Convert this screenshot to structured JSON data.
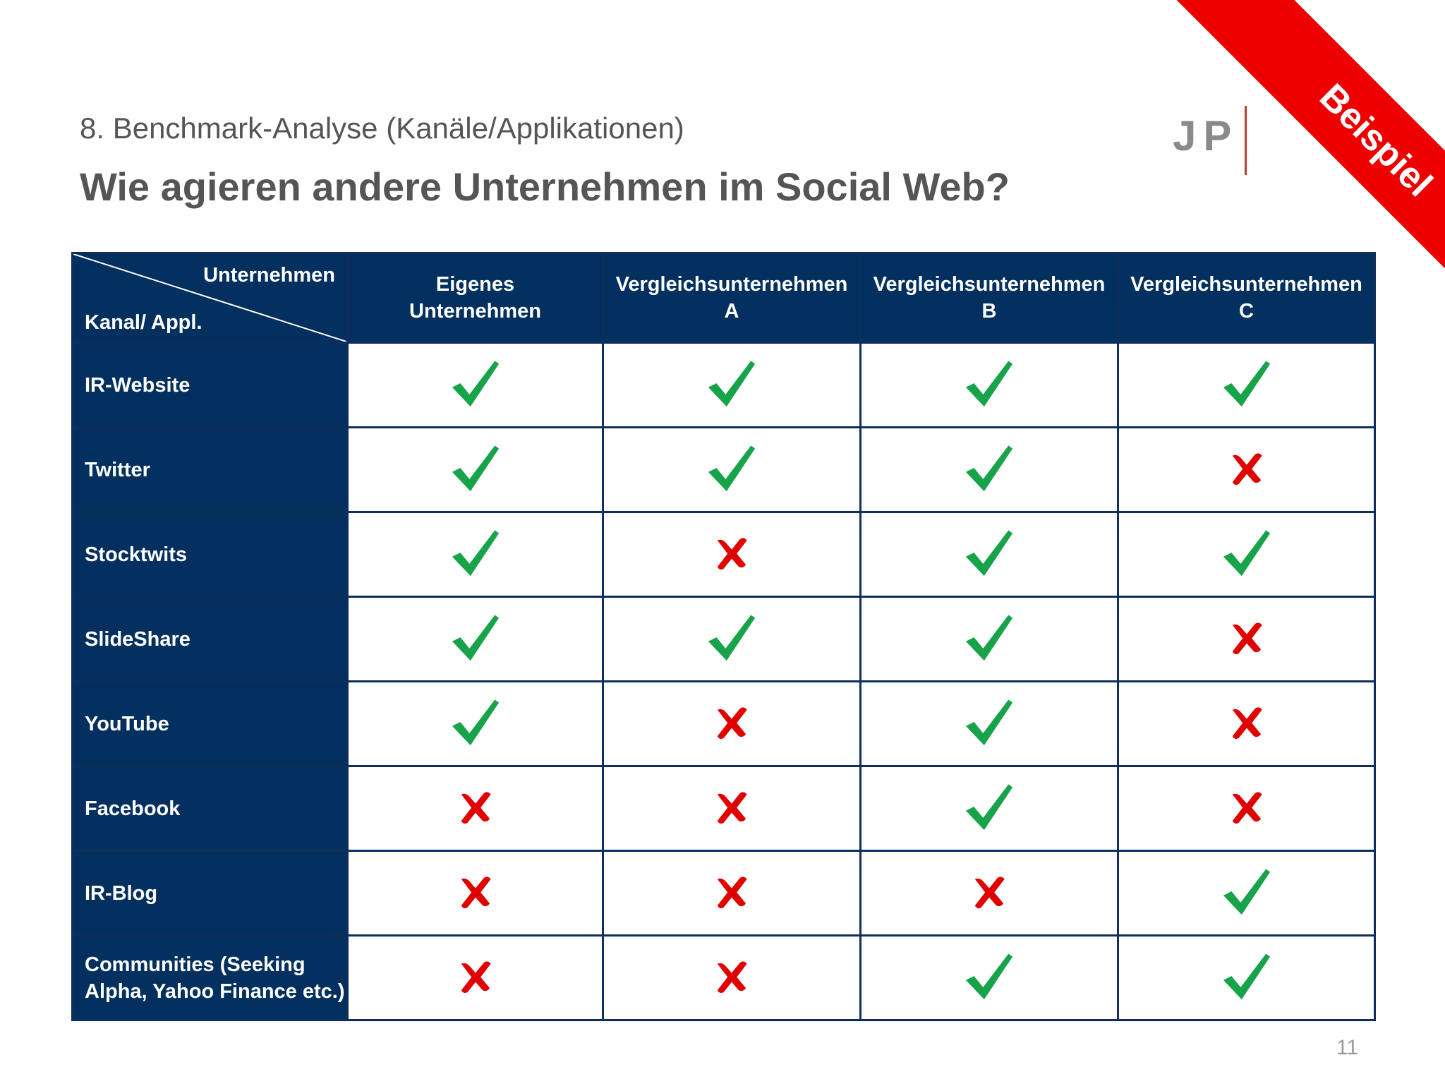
{
  "header": {
    "subtitle": "8. Benchmark-Analyse (Kanäle/Applikationen)",
    "title": "Wie agieren andere Unternehmen im Social Web?",
    "logo_text": "JP",
    "ribbon_text": "Beispiel"
  },
  "table": {
    "corner_top": "Unternehmen",
    "corner_bottom": "Kanal/ Appl.",
    "columns": [
      {
        "line1": "Eigenes",
        "line2": "Unternehmen"
      },
      {
        "line1": "Vergleichsunternehmen",
        "line2": "A"
      },
      {
        "line1": "Vergleichsunternehmen",
        "line2": "B"
      },
      {
        "line1": "Vergleichsunternehmen",
        "line2": "C"
      }
    ],
    "rows": [
      {
        "label": "IR-Website",
        "values": [
          true,
          true,
          true,
          true
        ]
      },
      {
        "label": "Twitter",
        "values": [
          true,
          true,
          true,
          false
        ]
      },
      {
        "label": "Stocktwits",
        "values": [
          true,
          false,
          true,
          true
        ]
      },
      {
        "label": "SlideShare",
        "values": [
          true,
          true,
          true,
          false
        ]
      },
      {
        "label": "YouTube",
        "values": [
          true,
          false,
          true,
          false
        ]
      },
      {
        "label": "Facebook",
        "values": [
          false,
          false,
          true,
          false
        ]
      },
      {
        "label": "IR-Blog",
        "values": [
          false,
          false,
          false,
          true
        ]
      },
      {
        "label": "Communities (Seeking Alpha, Yahoo Finance etc.)",
        "values": [
          false,
          false,
          true,
          true
        ]
      }
    ],
    "icons": {
      "yes": "green-checkmark-icon",
      "no": "red-cross-icon"
    },
    "colors": {
      "header_bg": "#04305f",
      "check": "#17a34a",
      "cross": "#e00000"
    }
  },
  "footer": {
    "page_number": "11"
  }
}
